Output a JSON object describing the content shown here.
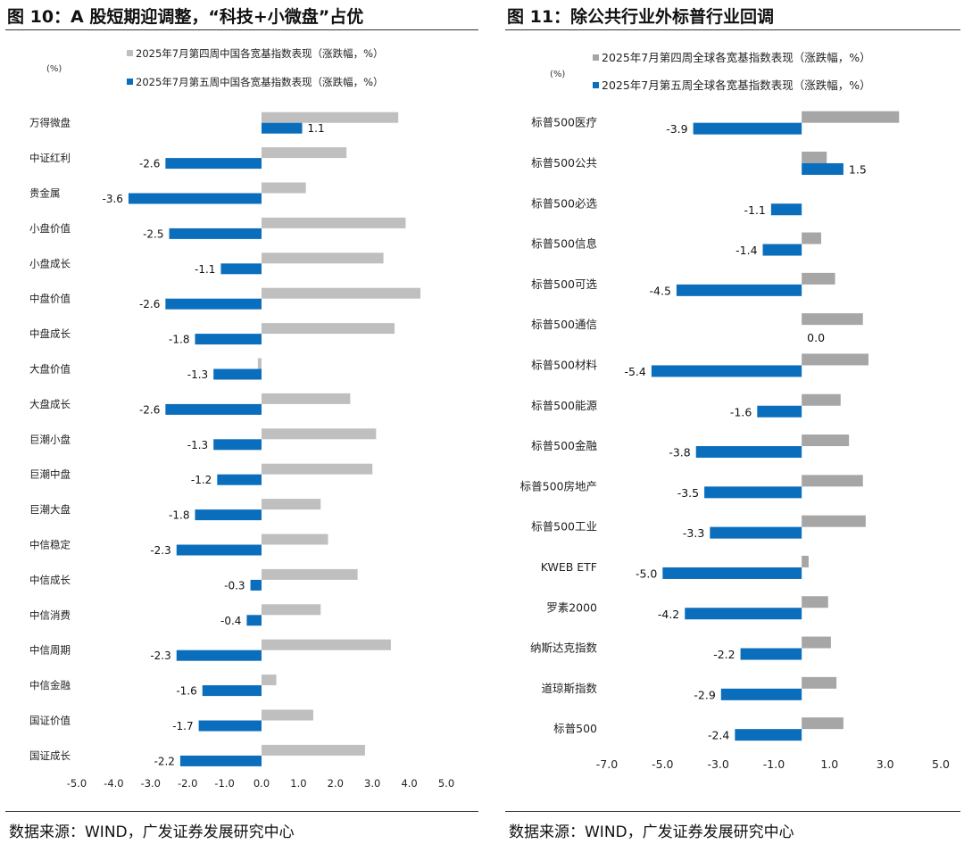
{
  "chart_data": [
    {
      "id": "fig10",
      "type": "bar",
      "orientation": "horizontal",
      "title": "图 10：A 股短期迎调整，“科技+小微盘”占优",
      "source": "数据来源：WIND，广发证券发展研究中心",
      "ylabel": "(%)",
      "xlim": [
        -5.0,
        5.0
      ],
      "xticks": [
        "-5.0",
        "-4.0",
        "-3.0",
        "-2.0",
        "-1.0",
        "0.0",
        "1.0",
        "2.0",
        "3.0",
        "4.0",
        "5.0"
      ],
      "legend_position": "top",
      "categories": [
        "万得微盘",
        "中证红利",
        "贵金属",
        "小盘价值",
        "小盘成长",
        "中盘价值",
        "中盘成长",
        "大盘价值",
        "大盘成长",
        "巨潮小盘",
        "巨潮中盘",
        "巨潮大盘",
        "中信稳定",
        "中信成长",
        "中信消费",
        "中信周期",
        "中信金融",
        "国证价值",
        "国证成长"
      ],
      "series": [
        {
          "name": "2025年7月第四周中国各宽基指数表现（涨跌幅，%）",
          "color": "#BFBFBF",
          "values": [
            3.7,
            2.3,
            1.2,
            3.9,
            3.3,
            4.3,
            3.6,
            -0.1,
            2.4,
            3.1,
            3.0,
            1.6,
            1.8,
            2.6,
            1.6,
            3.5,
            0.4,
            1.4,
            2.8
          ]
        },
        {
          "name": "2025年7月第五周中国各宽基指数表现（涨跌幅，%）",
          "color": "#0A6EBD",
          "values": [
            1.1,
            -2.6,
            -3.6,
            -2.5,
            -1.1,
            -2.6,
            -1.8,
            -1.3,
            -2.6,
            -1.3,
            -1.2,
            -1.8,
            -2.3,
            -0.3,
            -0.4,
            -2.3,
            -1.6,
            -1.7,
            -2.2
          ],
          "labels": [
            "1.1",
            "-2.6",
            "-3.6",
            "-2.5",
            "-1.1",
            "-2.6",
            "-1.8",
            "-1.3",
            "-2.6",
            "-1.3",
            "-1.2",
            "-1.8",
            "-2.3",
            "-0.3",
            "-0.4",
            "-2.3",
            "-1.6",
            "-1.7",
            "-2.2"
          ]
        }
      ]
    },
    {
      "id": "fig11",
      "type": "bar",
      "orientation": "horizontal",
      "title": "图 11：除公共行业外标普行业回调",
      "source": "数据来源：WIND，广发证券发展研究中心",
      "ylabel": "(%)",
      "xlim": [
        -7.0,
        5.0
      ],
      "xticks": [
        "-7.0",
        "-5.0",
        "-3.0",
        "-1.0",
        "1.0",
        "3.0",
        "5.0"
      ],
      "legend_position": "top",
      "categories": [
        "标普500医疗",
        "标普500公共",
        "标普500必选",
        "标普500信息",
        "标普500可选",
        "标普500通信",
        "标普500材料",
        "标普500能源",
        "标普500金融",
        "标普500房地产",
        "标普500工业",
        "KWEB ETF",
        "罗素2000",
        "纳斯达克指数",
        "道琼斯指数",
        "标普500"
      ],
      "series": [
        {
          "name": "2025年7月第四周全球各宽基指数表现（涨跌幅，%）",
          "color": "#A6A6A6",
          "values": [
            3.5,
            0.9,
            0.0,
            0.7,
            1.2,
            2.2,
            2.4,
            1.4,
            1.7,
            2.2,
            2.3,
            0.25,
            0.95,
            1.05,
            1.25,
            1.5
          ]
        },
        {
          "name": "2025年7月第五周全球各宽基指数表现（涨跌幅，%）",
          "color": "#0A6EBD",
          "values": [
            -3.9,
            1.5,
            -1.1,
            -1.4,
            -4.5,
            0.0,
            -5.4,
            -1.6,
            -3.8,
            -3.5,
            -3.3,
            -5.0,
            -4.2,
            -2.2,
            -2.9,
            -2.4
          ],
          "labels": [
            "-3.9",
            "1.5",
            "-1.1",
            "-1.4",
            "-4.5",
            "0.0",
            "-5.4",
            "-1.6",
            "-3.8",
            "-3.5",
            "-3.3",
            "-5.0",
            "-4.2",
            "-2.2",
            "-2.9",
            "-2.4"
          ]
        }
      ]
    }
  ]
}
